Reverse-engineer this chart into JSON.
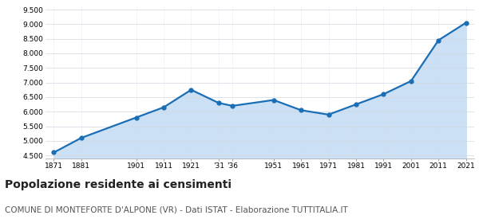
{
  "years": [
    1871,
    1881,
    1901,
    1911,
    1921,
    1931,
    1936,
    1951,
    1961,
    1971,
    1981,
    1991,
    2001,
    2011,
    2021
  ],
  "population": [
    4600,
    5100,
    5800,
    6150,
    6750,
    6300,
    6200,
    6400,
    6050,
    5900,
    6250,
    6600,
    7050,
    8450,
    9050
  ],
  "x_tick_labels": [
    "1871",
    "1881",
    "1901",
    "1911",
    "1921",
    "'31",
    "'36",
    "1951",
    "1961",
    "1971",
    "1981",
    "1991",
    "2001",
    "2011",
    "2021"
  ],
  "ylim": [
    4400,
    9600
  ],
  "yticks": [
    4500,
    5000,
    5500,
    6000,
    6500,
    7000,
    7500,
    8000,
    8500,
    9000,
    9500
  ],
  "line_color": "#1a6eb5",
  "fill_color": "#cce0f5",
  "marker_color": "#1a6eb5",
  "bg_color": "#ffffff",
  "grid_color": "#d0d8e0",
  "title": "Popolazione residente ai censimenti",
  "subtitle": "COMUNE DI MONTEFORTE D'ALPONE (VR) - Dati ISTAT - Elaborazione TUTTITALIA.IT",
  "title_fontsize": 10,
  "subtitle_fontsize": 7.5
}
